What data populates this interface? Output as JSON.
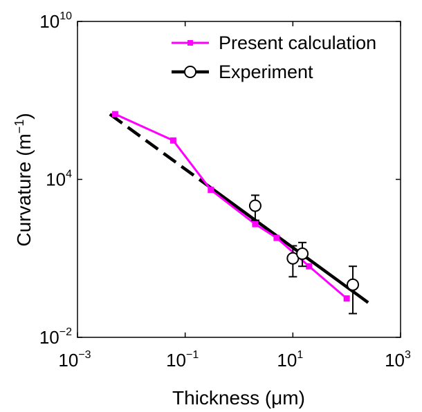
{
  "chart_data": {
    "type": "line",
    "xscale": "log",
    "yscale": "log",
    "xlabel": "Thickness (μm)",
    "ylabel": "Curvature (m",
    "ylabel_sup": "−1",
    "ylabel_close": ")",
    "xlim": [
      0.001,
      1000
    ],
    "ylim": [
      0.01,
      10000000000
    ],
    "x_ticks": [
      {
        "base": "10",
        "exp": "−3",
        "value": 0.001
      },
      {
        "base": "10",
        "exp": "−1",
        "value": 0.1
      },
      {
        "base": "10",
        "exp": "1",
        "value": 10
      },
      {
        "base": "10",
        "exp": "3",
        "value": 1000
      }
    ],
    "y_ticks": [
      {
        "base": "10",
        "exp": "−2",
        "value": 0.01
      },
      {
        "base": "10",
        "exp": "4",
        "value": 10000
      },
      {
        "base": "10",
        "exp": "10",
        "value": 10000000000
      }
    ],
    "legend_position": "top-right",
    "series": [
      {
        "name": "Present calculation",
        "color": "#ff00ff",
        "style": "solid-square-markers",
        "x": [
          0.005,
          0.06,
          0.3,
          2,
          5,
          20,
          100
        ],
        "y": [
          3000000,
          300000,
          4000,
          200,
          60,
          5,
          0.3
        ]
      },
      {
        "name": "Experiment",
        "color": "#000000",
        "style": "circle-markers-errorbars",
        "points": {
          "x": [
            2,
            10,
            15,
            130
          ],
          "y": [
            1000,
            10,
            15,
            1
          ],
          "y_low": [
            280,
            2,
            5,
            0.08
          ],
          "y_high": [
            2500,
            30,
            40,
            5
          ]
        },
        "fit_line": {
          "x": [
            0.004,
            250
          ],
          "y": [
            3000000,
            0.21
          ]
        }
      }
    ]
  }
}
